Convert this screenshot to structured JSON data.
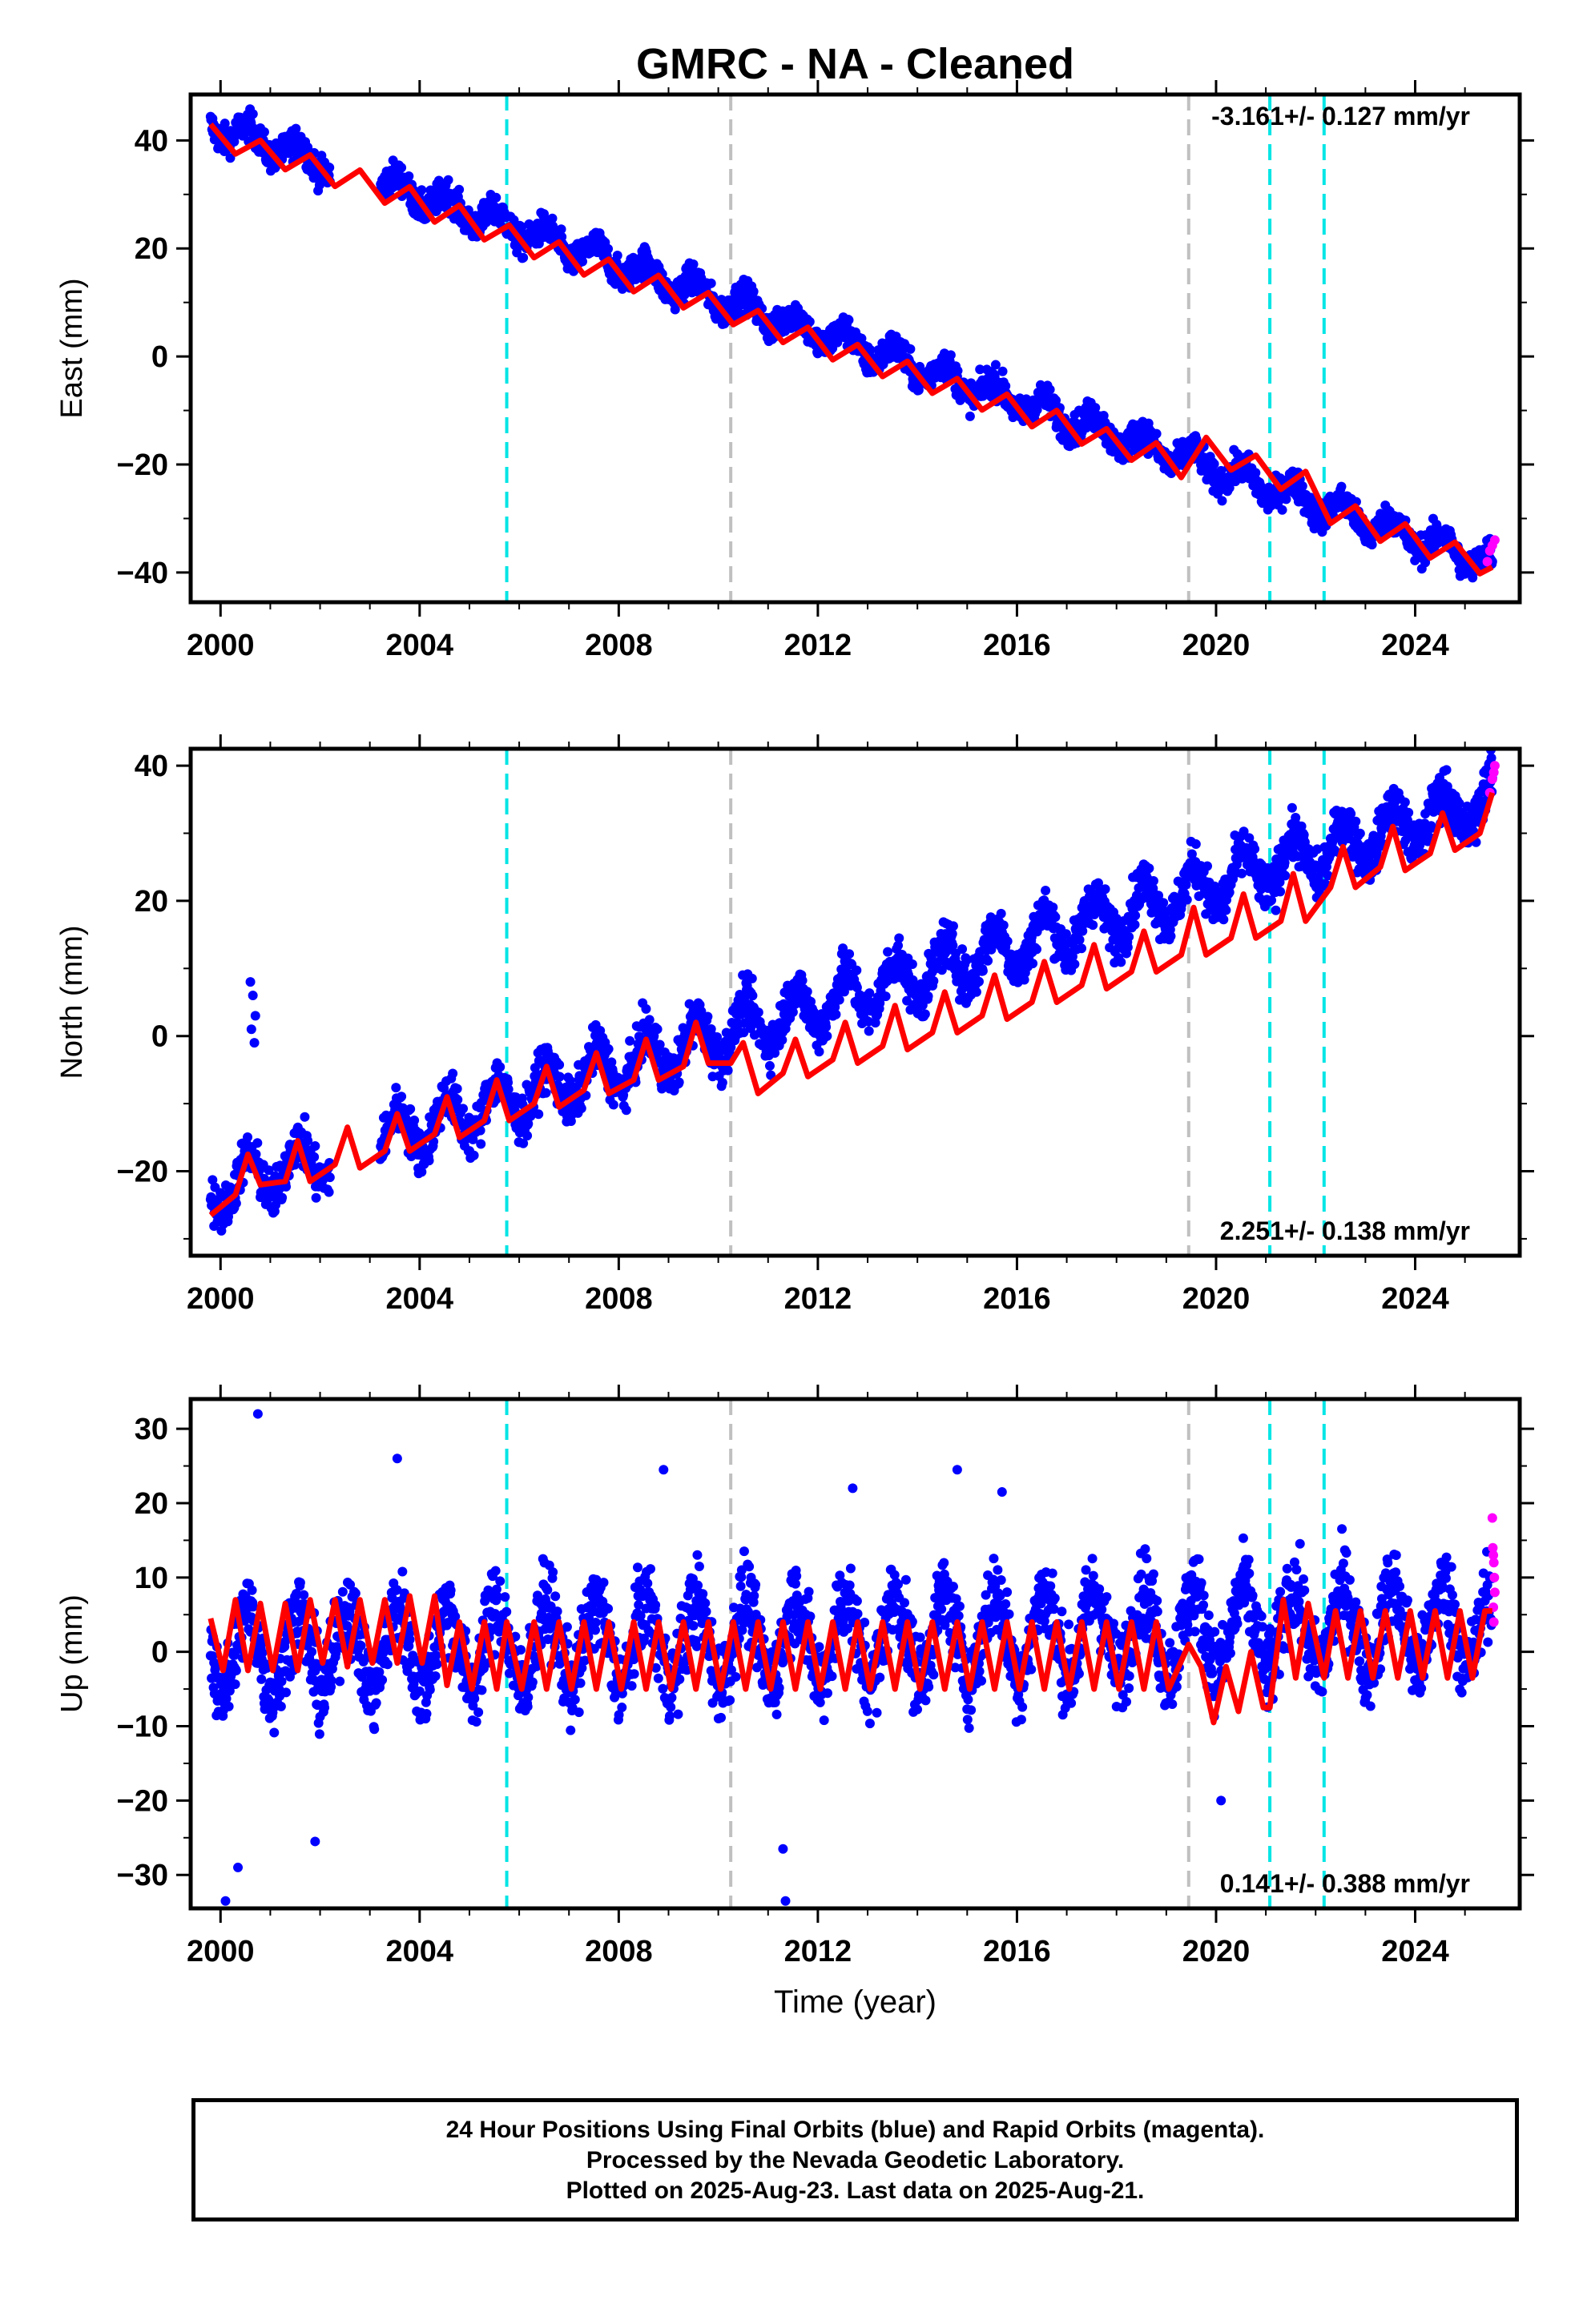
{
  "chart_data": [
    {
      "type": "scatter",
      "title": "GMRC  - NA - Cleaned",
      "ylabel": "East (mm)",
      "xlabel": "",
      "xlim": [
        1999.4,
        2026.1
      ],
      "ylim": [
        -45.5,
        48.5
      ],
      "xticks": [
        2000,
        2004,
        2008,
        2012,
        2016,
        2020,
        2024
      ],
      "yticks": [
        -40,
        -20,
        0,
        20,
        40
      ],
      "grid": false,
      "rate_label": "-3.161+/- 0.127 mm/yr",
      "series": [
        {
          "name": "Final Orbits",
          "color": "#0000ff",
          "kind": "points",
          "model": {
            "x_start": 1999.8,
            "x_end": 2025.55,
            "y0": 43,
            "rate": -3.161,
            "amplitude": 2.2,
            "noise": 2.0
          }
        },
        {
          "name": "Rapid Orbits",
          "color": "#ff00ff",
          "kind": "points",
          "x": [
            2025.45,
            2025.5,
            2025.55,
            2025.6
          ],
          "y": [
            -38,
            -36,
            -35,
            -34
          ]
        },
        {
          "name": "Model",
          "color": "#ff0000",
          "kind": "line",
          "x": [
            1999.8,
            2000.3,
            2000.8,
            2001.3,
            2001.8,
            2002.3,
            2002.8,
            2003.3,
            2003.8,
            2004.3,
            2004.8,
            2005.3,
            2005.8,
            2006.3,
            2006.8,
            2007.3,
            2007.8,
            2008.3,
            2008.8,
            2009.3,
            2009.8,
            2010.3,
            2010.8,
            2011.3,
            2011.8,
            2012.3,
            2012.8,
            2013.3,
            2013.8,
            2014.3,
            2014.8,
            2015.3,
            2015.8,
            2016.3,
            2016.8,
            2017.3,
            2017.8,
            2018.3,
            2018.8,
            2019.3,
            2019.8,
            2020.3,
            2020.8,
            2021.3,
            2021.8,
            2022.3,
            2022.8,
            2023.3,
            2023.8,
            2024.3,
            2024.8,
            2025.3,
            2025.55
          ],
          "y": [
            43.0,
            37.5,
            40.0,
            34.6,
            37.3,
            31.5,
            34.5,
            28.4,
            31.4,
            24.9,
            28.0,
            21.6,
            24.3,
            18.3,
            21.2,
            15.1,
            18.0,
            12.0,
            15.0,
            9.0,
            11.8,
            5.9,
            8.5,
            2.6,
            5.4,
            -0.6,
            2.2,
            -3.7,
            -0.9,
            -6.8,
            -4.1,
            -9.9,
            -7.0,
            -13.0,
            -10.0,
            -16.2,
            -13.4,
            -19.2,
            -16.0,
            -22.4,
            -15.0,
            -21.0,
            -18.3,
            -24.6,
            -21.3,
            -30.9,
            -27.7,
            -34.2,
            -31.0,
            -37.3,
            -34.4,
            -40.2,
            -39.0
          ]
        },
        {
          "name": "Offset (cyan)",
          "color": "#00e5e5",
          "kind": "vlines",
          "x": [
            2005.75,
            2021.08,
            2022.17
          ]
        },
        {
          "name": "Offset (gray)",
          "color": "#c0c0c0",
          "kind": "vlines",
          "x": [
            2010.25,
            2019.45
          ]
        }
      ]
    },
    {
      "type": "scatter",
      "title": "",
      "ylabel": "North (mm)",
      "xlabel": "",
      "xlim": [
        1999.4,
        2026.1
      ],
      "ylim": [
        -32.5,
        42.5
      ],
      "xticks": [
        2000,
        2004,
        2008,
        2012,
        2016,
        2020,
        2024
      ],
      "yticks": [
        -20,
        0,
        20,
        40
      ],
      "grid": false,
      "rate_label": "2.251+/- 0.138 mm/yr",
      "series": [
        {
          "name": "Final Orbits",
          "color": "#0000ff",
          "kind": "points",
          "model": {
            "x_start": 1999.8,
            "x_end": 2025.55,
            "y0": -23,
            "rate": 2.251,
            "amplitude": 3.5,
            "noise": 2.5
          },
          "outliers": {
            "x": [
              2000.6,
              2000.65,
              2000.7,
              2000.62,
              2000.68
            ],
            "y": [
              8,
              6,
              3,
              1,
              -1
            ]
          }
        },
        {
          "name": "Rapid Orbits",
          "color": "#ff00ff",
          "kind": "points",
          "x": [
            2025.5,
            2025.55,
            2025.58,
            2025.6
          ],
          "y": [
            36,
            38,
            39,
            40
          ]
        },
        {
          "name": "Model",
          "color": "#ff0000",
          "kind": "line",
          "x": [
            1999.8,
            2000.3,
            2000.55,
            2000.8,
            2001.3,
            2001.55,
            2001.8,
            2002.3,
            2002.55,
            2002.8,
            2003.3,
            2003.55,
            2003.8,
            2004.3,
            2004.55,
            2004.8,
            2005.3,
            2005.55,
            2005.8,
            2006.3,
            2006.55,
            2006.8,
            2007.3,
            2007.55,
            2007.8,
            2008.3,
            2008.55,
            2008.8,
            2009.3,
            2009.55,
            2009.8,
            2010.25,
            2010.5,
            2010.8,
            2011.3,
            2011.55,
            2011.8,
            2012.3,
            2012.55,
            2012.8,
            2013.3,
            2013.55,
            2013.8,
            2014.3,
            2014.55,
            2014.8,
            2015.3,
            2015.55,
            2015.8,
            2016.3,
            2016.55,
            2016.8,
            2017.3,
            2017.55,
            2017.8,
            2018.3,
            2018.55,
            2018.8,
            2019.3,
            2019.55,
            2019.8,
            2020.3,
            2020.55,
            2020.8,
            2021.3,
            2021.55,
            2021.8,
            2022.3,
            2022.55,
            2022.8,
            2023.3,
            2023.55,
            2023.8,
            2024.3,
            2024.55,
            2024.8,
            2025.3,
            2025.55
          ],
          "y": [
            -26.5,
            -23.5,
            -17.5,
            -22.0,
            -21.5,
            -15.5,
            -21.5,
            -19.0,
            -13.5,
            -19.5,
            -17.0,
            -11.5,
            -17.0,
            -14.5,
            -9.0,
            -15.0,
            -12.5,
            -6.5,
            -12.5,
            -10.0,
            -4.5,
            -10.5,
            -8.0,
            -2.5,
            -8.5,
            -6.5,
            -0.5,
            -6.5,
            -4.5,
            2.0,
            -4.0,
            -4.0,
            -1.0,
            -8.5,
            -5.5,
            -0.5,
            -6.0,
            -3.5,
            2.0,
            -4.0,
            -1.5,
            4.5,
            -2.0,
            0.5,
            6.5,
            0.5,
            3.0,
            9.0,
            2.5,
            5.0,
            11.0,
            5.0,
            7.5,
            13.5,
            7.0,
            9.5,
            15.5,
            9.5,
            12.0,
            19.0,
            12.0,
            14.5,
            21.0,
            14.5,
            17.0,
            24.0,
            17.0,
            22.0,
            28.0,
            22.0,
            25.0,
            31.0,
            24.5,
            27.0,
            33.0,
            27.5,
            30.0,
            36.0
          ]
        },
        {
          "name": "Offset (cyan)",
          "color": "#00e5e5",
          "kind": "vlines",
          "x": [
            2005.75,
            2021.08,
            2022.17
          ]
        },
        {
          "name": "Offset (gray)",
          "color": "#c0c0c0",
          "kind": "vlines",
          "x": [
            2010.25,
            2019.45
          ]
        }
      ]
    },
    {
      "type": "scatter",
      "title": "",
      "ylabel": "Up (mm)",
      "xlabel": "Time (year)",
      "xlim": [
        1999.4,
        2026.1
      ],
      "ylim": [
        -34.5,
        34
      ],
      "xticks": [
        2000,
        2004,
        2008,
        2012,
        2016,
        2020,
        2024
      ],
      "yticks": [
        -30,
        -20,
        -10,
        0,
        10,
        20,
        30
      ],
      "grid": false,
      "rate_label": "0.141+/- 0.388 mm/yr",
      "series": [
        {
          "name": "Final Orbits",
          "color": "#0000ff",
          "kind": "points",
          "model": {
            "x_start": 1999.8,
            "x_end": 2025.55,
            "y0": 0,
            "rate": 0.141,
            "amplitude": 5.5,
            "noise": 4.0
          },
          "outliers": {
            "x": [
              2000.75,
              2000.1,
              2000.35,
              2001.9,
              2003.55,
              2008.9,
              2011.3,
              2011.35,
              2012.7,
              2014.8,
              2015.7,
              2020.1
            ],
            "y": [
              32,
              -33.5,
              -29,
              -25.5,
              26,
              24.5,
              -26.5,
              -33.5,
              22,
              24.5,
              21.5,
              -20
            ]
          }
        },
        {
          "name": "Rapid Orbits",
          "color": "#ff00ff",
          "kind": "points",
          "x": [
            2025.55,
            2025.56,
            2025.57,
            2025.58,
            2025.59,
            2025.6,
            2025.57,
            2025.58
          ],
          "y": [
            18,
            14,
            13,
            12,
            10,
            8,
            6,
            4
          ]
        },
        {
          "name": "Model",
          "color": "#ff0000",
          "kind": "line",
          "x": [
            1999.8,
            2000.05,
            2000.3,
            2000.55,
            2000.8,
            2001.05,
            2001.3,
            2001.55,
            2001.8,
            2002.05,
            2002.3,
            2002.55,
            2002.8,
            2003.05,
            2003.3,
            2003.55,
            2003.8,
            2004.05,
            2004.3,
            2004.55,
            2004.8,
            2005.05,
            2005.3,
            2005.55,
            2005.75,
            2006.05,
            2006.3,
            2006.55,
            2006.8,
            2007.05,
            2007.3,
            2007.55,
            2007.8,
            2008.05,
            2008.3,
            2008.55,
            2008.8,
            2009.05,
            2009.3,
            2009.55,
            2009.8,
            2010.05,
            2010.3,
            2010.55,
            2010.8,
            2011.05,
            2011.3,
            2011.55,
            2011.8,
            2012.05,
            2012.3,
            2012.55,
            2012.8,
            2013.05,
            2013.3,
            2013.55,
            2013.8,
            2014.05,
            2014.3,
            2014.55,
            2014.8,
            2015.05,
            2015.3,
            2015.55,
            2015.8,
            2016.05,
            2016.3,
            2016.55,
            2016.8,
            2017.05,
            2017.3,
            2017.55,
            2017.8,
            2018.05,
            2018.3,
            2018.55,
            2018.8,
            2019.05,
            2019.45,
            2019.7,
            2019.95,
            2020.2,
            2020.45,
            2020.7,
            2020.95,
            2021.08,
            2021.35,
            2021.6,
            2021.85,
            2022.17,
            2022.4,
            2022.65,
            2022.9,
            2023.15,
            2023.4,
            2023.65,
            2023.9,
            2024.15,
            2024.4,
            2024.65,
            2024.9,
            2025.15,
            2025.4,
            2025.55
          ],
          "y": [
            4.5,
            -2.5,
            7.0,
            -2.5,
            6.5,
            -2.5,
            6.5,
            -2.5,
            7.0,
            -1.5,
            7.0,
            -2.0,
            7.0,
            -1.5,
            7.0,
            -1.5,
            7.5,
            -1.5,
            7.5,
            -4.5,
            4.0,
            -5.0,
            4.0,
            -5.0,
            4.0,
            -5.0,
            4.0,
            -5.0,
            4.0,
            -5.0,
            4.0,
            -5.0,
            4.0,
            -5.0,
            4.0,
            -5.0,
            4.0,
            -5.0,
            4.0,
            -5.0,
            4.0,
            -5.0,
            4.0,
            -5.0,
            4.0,
            -5.0,
            4.0,
            -5.0,
            4.0,
            -5.0,
            4.0,
            -5.0,
            4.0,
            -5.0,
            4.0,
            -5.0,
            4.0,
            -5.0,
            4.0,
            -5.0,
            4.0,
            -5.0,
            4.0,
            -5.0,
            4.0,
            -5.0,
            4.0,
            -5.0,
            4.0,
            -5.0,
            4.0,
            -5.0,
            4.0,
            -5.0,
            4.0,
            -5.0,
            4.0,
            -5.0,
            1.0,
            -2.0,
            -9.5,
            -2.0,
            -8.0,
            0.0,
            -7.5,
            -7.5,
            7.0,
            -3.5,
            6.5,
            -3.5,
            5.5,
            -3.5,
            5.5,
            -3.5,
            5.5,
            -3.5,
            5.5,
            -3.5,
            5.5,
            -3.5,
            5.5,
            -3.5,
            5.5,
            5.5
          ]
        },
        {
          "name": "Offset (cyan)",
          "color": "#00e5e5",
          "kind": "vlines",
          "x": [
            2005.75,
            2021.08,
            2022.17
          ]
        },
        {
          "name": "Offset (gray)",
          "color": "#c0c0c0",
          "kind": "vlines",
          "x": [
            2010.25,
            2019.45
          ]
        }
      ]
    }
  ],
  "footer": {
    "line1": "24 Hour Positions Using Final Orbits (blue) and Rapid Orbits (magenta).",
    "line2": "Processed by the Nevada Geodetic Laboratory.",
    "line3": "Plotted on 2025-Aug-23. Last data on 2025-Aug-21."
  }
}
